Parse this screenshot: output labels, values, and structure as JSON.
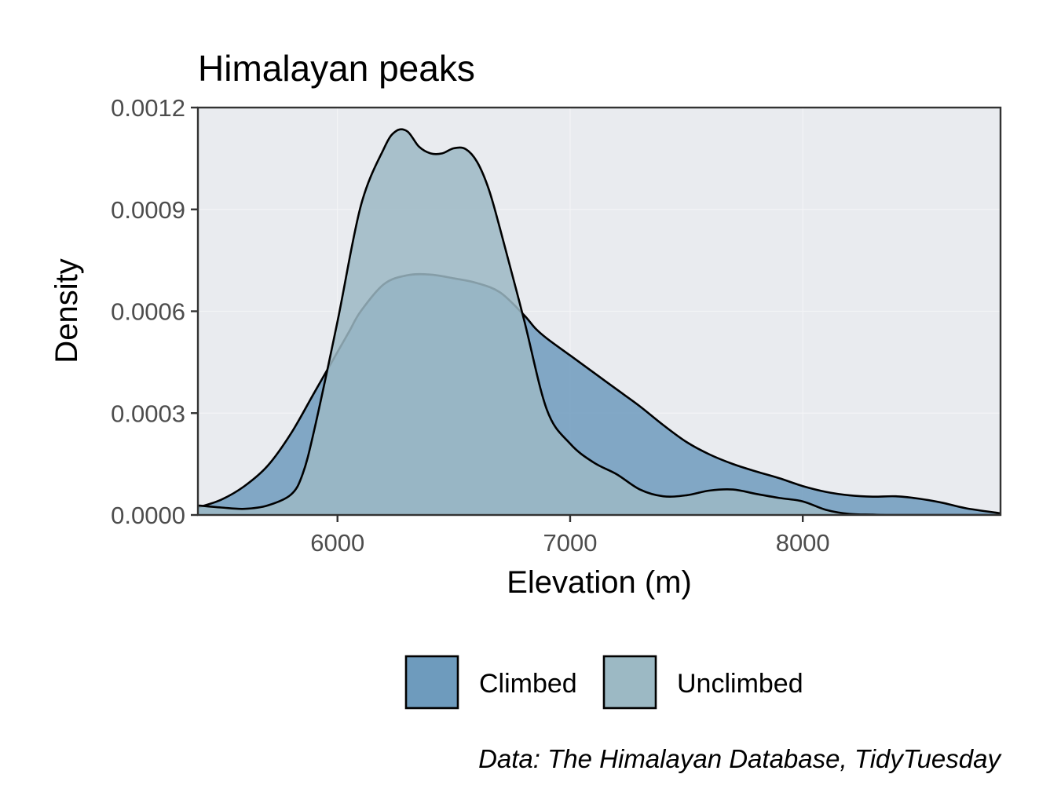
{
  "chart_data": {
    "type": "area",
    "title": "Himalayan peaks",
    "xlabel": "Elevation (m)",
    "ylabel": "Density",
    "caption": "Data: The Himalayan Database, TidyTuesday",
    "xlim": [
      5400,
      8850
    ],
    "ylim": [
      0,
      0.0012
    ],
    "x_ticks": [
      6000,
      7000,
      8000
    ],
    "x_tick_labels": [
      "6000",
      "7000",
      "8000"
    ],
    "y_ticks": [
      0,
      0.0003,
      0.0006,
      0.0009,
      0.0012
    ],
    "y_tick_labels": [
      "0.0000",
      "0.0003",
      "0.0006",
      "0.0009",
      "0.0012"
    ],
    "panel_background": "#e9ebef",
    "grid": true,
    "legend": {
      "position": "bottom"
    },
    "series": [
      {
        "name": "Climbed",
        "color": "#6e9bbd",
        "x": [
          5400,
          5500,
          5600,
          5700,
          5800,
          5900,
          6000,
          6050,
          6100,
          6200,
          6300,
          6400,
          6500,
          6600,
          6700,
          6800,
          6850,
          6900,
          7000,
          7100,
          7200,
          7300,
          7400,
          7500,
          7600,
          7700,
          7800,
          7900,
          8000,
          8100,
          8200,
          8300,
          8400,
          8500,
          8600,
          8700,
          8850
        ],
        "values": [
          2.2e-05,
          4.5e-05,
          8.5e-05,
          0.000145,
          0.00024,
          0.00036,
          0.00048,
          0.00054,
          0.0006,
          0.00068,
          0.000706,
          0.000708,
          0.000697,
          0.000683,
          0.000655,
          0.00059,
          0.00055,
          0.00052,
          0.00047,
          0.00042,
          0.00037,
          0.00032,
          0.000265,
          0.000215,
          0.000178,
          0.00015,
          0.000128,
          0.000108,
          8.5e-05,
          6.8e-05,
          5.8e-05,
          5.4e-05,
          5.5e-05,
          4.8e-05,
          3.6e-05,
          2e-05,
          5e-06
        ]
      },
      {
        "name": "Unclimbed",
        "color": "#9cb9c4",
        "x": [
          5400,
          5500,
          5600,
          5700,
          5800,
          5850,
          5900,
          6000,
          6100,
          6200,
          6250,
          6300,
          6350,
          6400,
          6450,
          6500,
          6550,
          6600,
          6650,
          6700,
          6800,
          6900,
          7000,
          7100,
          7200,
          7300,
          7400,
          7500,
          7600,
          7700,
          7800,
          7900,
          8000,
          8100,
          8200,
          8300,
          8400,
          8850
        ],
        "values": [
          2.8e-05,
          2.2e-05,
          1.8e-05,
          2.8e-05,
          6e-05,
          0.00012,
          0.00025,
          0.00057,
          0.00091,
          0.00108,
          0.00113,
          0.00113,
          0.001085,
          0.001065,
          0.001065,
          0.00108,
          0.001078,
          0.00104,
          0.00096,
          0.00084,
          0.00058,
          0.00031,
          0.00021,
          0.000155,
          0.00012,
          7.5e-05,
          5.5e-05,
          5.8e-05,
          7.2e-05,
          7.5e-05,
          6.2e-05,
          5e-05,
          4e-05,
          1.5e-05,
          3e-06,
          1e-06,
          0.0,
          0.0
        ]
      }
    ]
  }
}
